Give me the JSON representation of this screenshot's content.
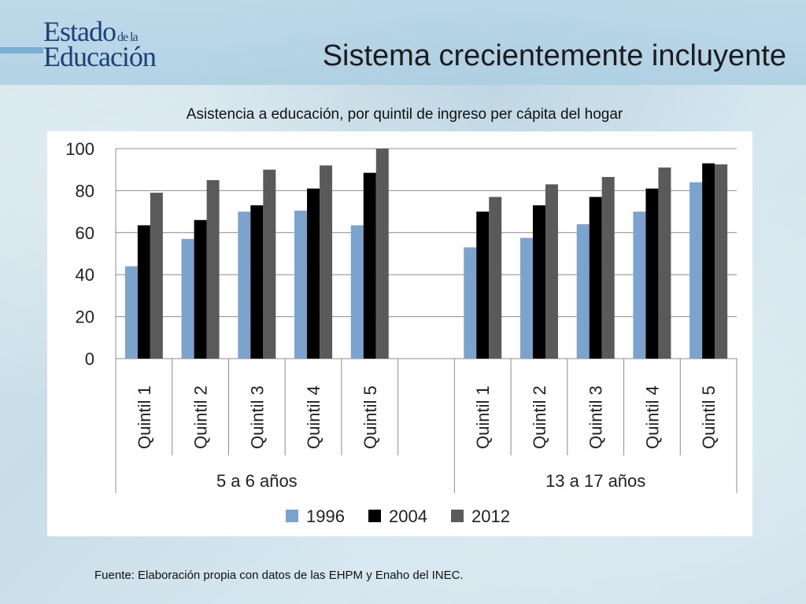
{
  "logo": {
    "line1": "Estado",
    "small": "de la",
    "line2": "Educación"
  },
  "title": "Sistema crecientemente incluyente",
  "source": "Fuente: Elaboración propia con datos de las EHPM y Enaho del INEC.",
  "chart_data": {
    "type": "bar",
    "title": "Asistencia a educación, por quintil de ingreso per cápita del hogar",
    "ylim": [
      0,
      100
    ],
    "yticks": [
      0,
      20,
      40,
      60,
      80,
      100
    ],
    "grid": true,
    "legend_position": "bottom",
    "groups": [
      {
        "label": "5 a 6 años",
        "categories": [
          "Quintil 1",
          "Quintil 2",
          "Quintil 3",
          "Quintil 4",
          "Quintil 5"
        ]
      },
      {
        "label": "13 a 17 años",
        "categories": [
          "Quintil 1",
          "Quintil 2",
          "Quintil 3",
          "Quintil 4",
          "Quintil 5"
        ]
      }
    ],
    "series": [
      {
        "name": "1996",
        "color": "#7ba3cd",
        "values": [
          [
            44,
            57,
            70,
            70.5,
            63.5
          ],
          [
            53,
            57.5,
            64,
            70,
            84
          ]
        ]
      },
      {
        "name": "2004",
        "color": "#000000",
        "values": [
          [
            63.5,
            66,
            73,
            81,
            88.5
          ],
          [
            70,
            73,
            77,
            81,
            93
          ]
        ]
      },
      {
        "name": "2012",
        "color": "#5a5a5a",
        "values": [
          [
            79,
            85,
            90,
            92,
            100
          ],
          [
            77,
            83,
            86.5,
            91,
            92.5
          ]
        ]
      }
    ]
  }
}
